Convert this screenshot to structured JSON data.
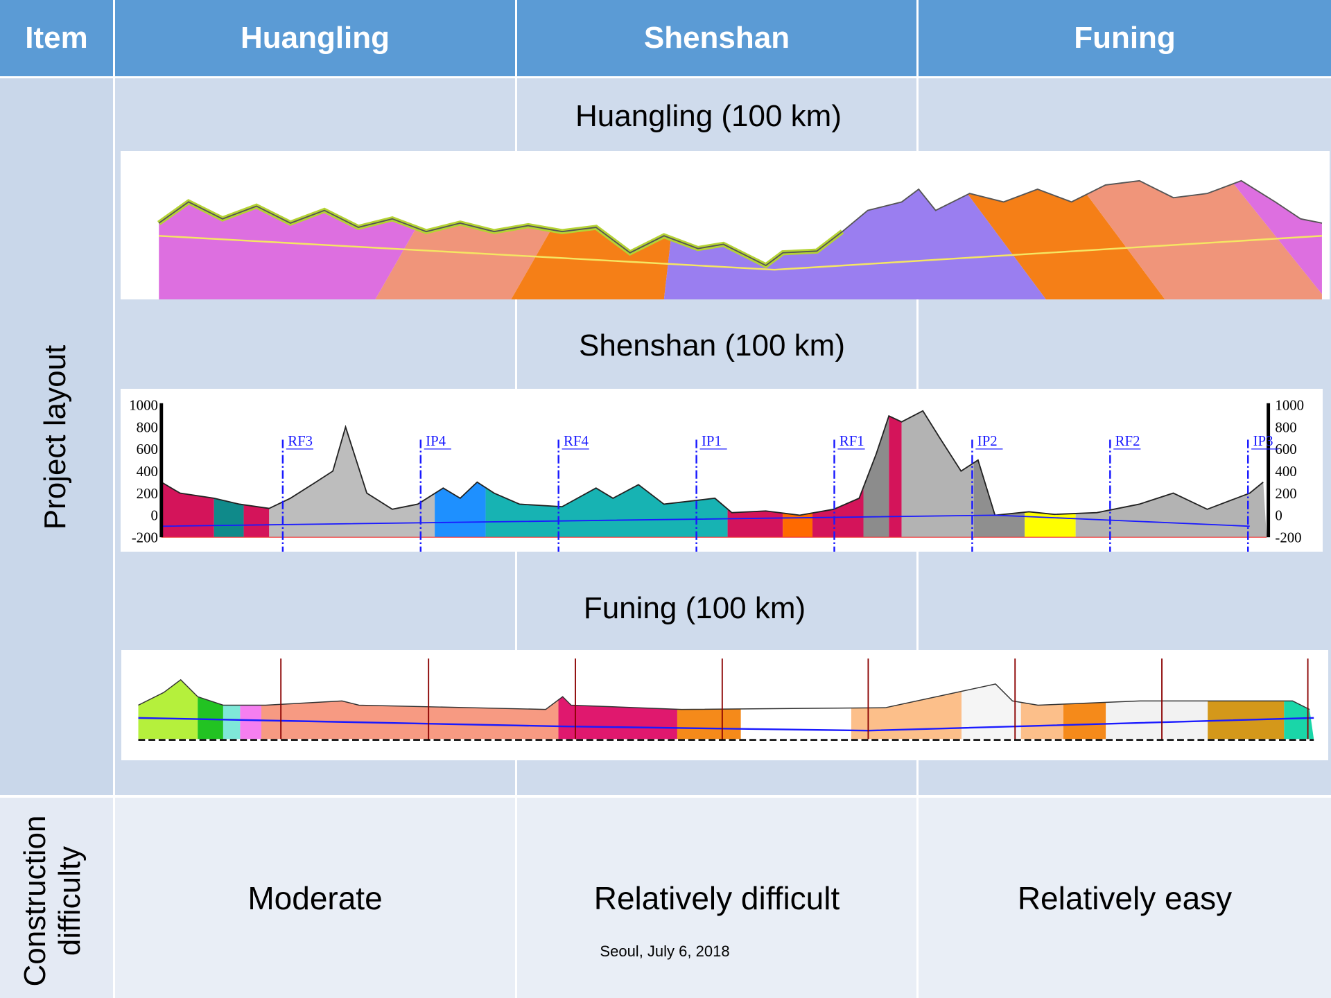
{
  "header": {
    "columns": [
      "Item",
      "Huangling",
      "Shenshan",
      "Funing"
    ]
  },
  "rows": [
    {
      "label": "Project layout"
    },
    {
      "label": "Construction difficulty",
      "values": [
        "Moderate",
        "Relatively difficult",
        "Relatively easy"
      ]
    }
  ],
  "profiles": [
    {
      "title": "Huangling (100 km)"
    },
    {
      "title": "Shenshan (100 km)",
      "depth_ticks": [
        1000,
        800,
        600,
        400,
        200,
        0,
        -200
      ],
      "markers": [
        "RF3",
        "IP4",
        "RF4",
        "IP1",
        "RF1",
        "IP2",
        "RF2",
        "IP3"
      ]
    },
    {
      "title": "Funing (100 km)"
    }
  ],
  "footer": "Seoul, July 6, 2018"
}
